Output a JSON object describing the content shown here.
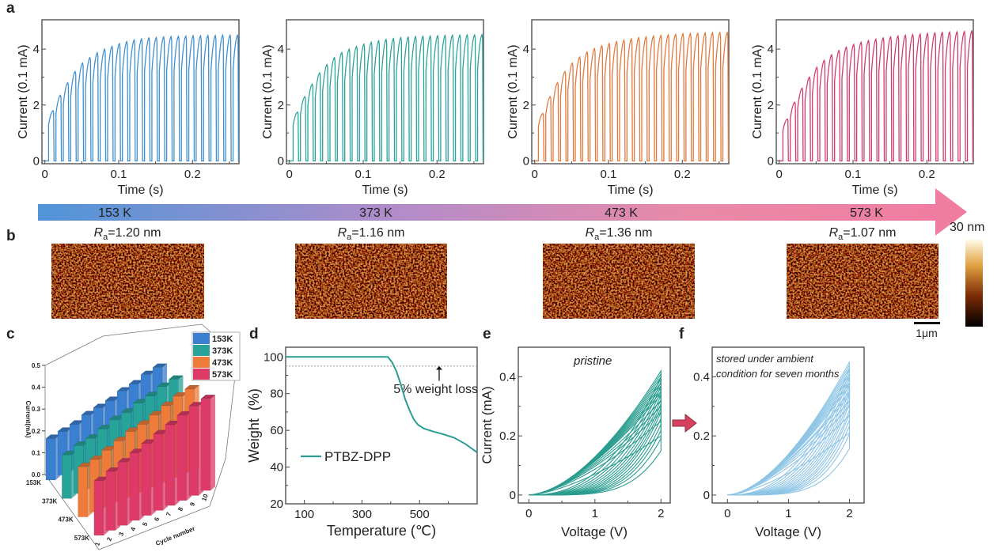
{
  "panel_labels": {
    "a": "a",
    "b": "b",
    "c": "c",
    "d": "d",
    "e": "e",
    "f": "f"
  },
  "temperature_arrow": {
    "labels": [
      "153 K",
      "373 K",
      "473 K",
      "573 K"
    ],
    "gradient_colors": [
      "#4f95d8",
      "#b58cc8",
      "#e98aa8",
      "#f07ba0"
    ]
  },
  "afm": {
    "images": [
      {
        "ra_symbol": "R",
        "ra_sub": "a",
        "ra_value": "=1.20 nm"
      },
      {
        "ra_symbol": "R",
        "ra_sub": "a",
        "ra_value": "=1.16 nm"
      },
      {
        "ra_symbol": "R",
        "ra_sub": "a",
        "ra_value": "=1.36 nm"
      },
      {
        "ra_symbol": "R",
        "ra_sub": "a",
        "ra_value": "=1.07 nm"
      }
    ],
    "colorbar_max": "30 nm",
    "scale_bar": "1μm"
  },
  "chart_data": [
    {
      "panel": "a",
      "type": "line",
      "temperature": "153 K",
      "color": "#3f8fd0",
      "xlabel": "Time (s)",
      "ylabel": "Current (0.1 mA)",
      "xlim": [
        -0.004,
        0.263
      ],
      "ylim": [
        -0.1,
        5.05
      ],
      "xticks": [
        "0",
        "0.1",
        "0.2"
      ],
      "yticks": [
        "0",
        "2",
        "4"
      ],
      "pulse_period_s": 0.01,
      "pulse_peaks": [
        1.8,
        2.35,
        2.8,
        3.2,
        3.5,
        3.7,
        3.87,
        4.0,
        4.1,
        4.2,
        4.27,
        4.33,
        4.37,
        4.4,
        4.42,
        4.44,
        4.45,
        4.46,
        4.47,
        4.48,
        4.48,
        4.49,
        4.49,
        4.5,
        4.5,
        4.5
      ]
    },
    {
      "panel": "a",
      "type": "line",
      "temperature": "373 K",
      "color": "#2aa39a",
      "xlabel": "Time (s)",
      "ylabel": "Current (0.1 mA)",
      "xlim": [
        -0.004,
        0.263
      ],
      "ylim": [
        -0.1,
        5.05
      ],
      "xticks": [
        "0",
        "0.1",
        "0.2"
      ],
      "yticks": [
        "0",
        "2",
        "4"
      ],
      "pulse_period_s": 0.01,
      "pulse_peaks": [
        1.75,
        2.3,
        2.75,
        3.15,
        3.45,
        3.7,
        3.88,
        4.0,
        4.1,
        4.18,
        4.25,
        4.3,
        4.35,
        4.38,
        4.41,
        4.43,
        4.45,
        4.46,
        4.47,
        4.48,
        4.49,
        4.5,
        4.5,
        4.51,
        4.51,
        4.52
      ]
    },
    {
      "panel": "a",
      "type": "line",
      "temperature": "473 K",
      "color": "#e2793e",
      "xlabel": "Time (s)",
      "ylabel": "Current (0.1 mA)",
      "xlim": [
        -0.004,
        0.263
      ],
      "ylim": [
        -0.1,
        5.05
      ],
      "xticks": [
        "0",
        "0.1",
        "0.2"
      ],
      "yticks": [
        "0",
        "2",
        "4"
      ],
      "pulse_period_s": 0.01,
      "pulse_peaks": [
        1.7,
        2.3,
        2.8,
        3.2,
        3.5,
        3.72,
        3.9,
        4.02,
        4.12,
        4.2,
        4.27,
        4.32,
        4.37,
        4.41,
        4.44,
        4.47,
        4.49,
        4.51,
        4.53,
        4.55,
        4.56,
        4.57,
        4.58,
        4.59,
        4.6,
        4.6
      ]
    },
    {
      "panel": "a",
      "type": "line",
      "temperature": "573 K",
      "color": "#d23c6a",
      "xlabel": "Time (s)",
      "ylabel": "Current (0.1 mA)",
      "xlim": [
        -0.004,
        0.263
      ],
      "ylim": [
        -0.1,
        5.05
      ],
      "xticks": [
        "0",
        "0.1",
        "0.2"
      ],
      "yticks": [
        "0",
        "2",
        "4"
      ],
      "pulse_period_s": 0.01,
      "pulse_peaks": [
        1.5,
        2.1,
        2.6,
        3.0,
        3.35,
        3.6,
        3.8,
        3.95,
        4.07,
        4.17,
        4.25,
        4.31,
        4.36,
        4.4,
        4.44,
        4.47,
        4.5,
        4.52,
        4.54,
        4.56,
        4.58,
        4.6,
        4.61,
        4.62,
        4.63,
        4.65
      ]
    },
    {
      "panel": "c",
      "type": "bar3d",
      "ylabel": "Current(mA)",
      "xlabel": "Cycle number",
      "zlim": [
        0,
        0.5
      ],
      "yticks": [
        "0.0",
        "0.1",
        "0.2",
        "0.3",
        "0.4",
        "0.5"
      ],
      "categories": [
        "1",
        "2",
        "3",
        "4",
        "5",
        "6",
        "7",
        "8",
        "9",
        "10"
      ],
      "series": [
        {
          "name": "153K",
          "color": "#3a7fd0",
          "values": [
            0.19,
            0.2,
            0.21,
            0.23,
            0.24,
            0.25,
            0.27,
            0.28,
            0.3,
            0.31
          ]
        },
        {
          "name": "373K",
          "color": "#27a39a",
          "values": [
            0.2,
            0.22,
            0.23,
            0.25,
            0.27,
            0.28,
            0.3,
            0.31,
            0.33,
            0.34
          ]
        },
        {
          "name": "473K",
          "color": "#ee7b3a",
          "values": [
            0.23,
            0.24,
            0.26,
            0.28,
            0.3,
            0.31,
            0.33,
            0.35,
            0.37,
            0.38
          ]
        },
        {
          "name": "573K",
          "color": "#de3a68",
          "values": [
            0.25,
            0.27,
            0.29,
            0.31,
            0.33,
            0.35,
            0.37,
            0.39,
            0.41,
            0.42
          ]
        }
      ],
      "legend": "top-right"
    },
    {
      "panel": "d",
      "type": "line",
      "xlabel": "Temperature (℃)",
      "ylabel": "Weight  (%)",
      "xlim": [
        35,
        700
      ],
      "ylim": [
        20,
        105.3
      ],
      "xticks": [
        100,
        300,
        500
      ],
      "yticks": [
        20,
        40,
        60,
        80,
        100
      ],
      "series": [
        {
          "name": "PTBZ-DPP",
          "color": "#2a9d8f",
          "points": [
            [
              35,
              100
            ],
            [
              390,
              100
            ],
            [
              405,
              97
            ],
            [
              420,
              92
            ],
            [
              435,
              85
            ],
            [
              450,
              77
            ],
            [
              465,
              71
            ],
            [
              480,
              66
            ],
            [
              495,
              63
            ],
            [
              515,
              61
            ],
            [
              545,
              59.5
            ],
            [
              580,
              58
            ],
            [
              620,
              56
            ],
            [
              660,
              52.5
            ],
            [
              700,
              48
            ]
          ]
        }
      ],
      "reference_line": 95,
      "annotation": "5% weight loss",
      "legend": "bottom-left"
    },
    {
      "panel": "e",
      "type": "line",
      "xlabel": "Voltage (V)",
      "ylabel": "Current (mA)",
      "xlim": [
        -0.16,
        2.14
      ],
      "ylim": [
        -0.027,
        0.5
      ],
      "xticks": [
        "0",
        "1",
        "2"
      ],
      "yticks": [
        "0",
        "0.2",
        "0.4"
      ],
      "annotation": "pristine",
      "color": "#2a9d8f",
      "loop_peak_currents": [
        0.2,
        0.25,
        0.28,
        0.3,
        0.32,
        0.34,
        0.35,
        0.36,
        0.37,
        0.38,
        0.39,
        0.4,
        0.41,
        0.42
      ]
    },
    {
      "panel": "f",
      "type": "line",
      "xlabel": "Voltage (V)",
      "ylabel": "",
      "xlim": [
        -0.25,
        2.24
      ],
      "ylim": [
        -0.027,
        0.5
      ],
      "xticks": [
        "0",
        "1",
        "2"
      ],
      "yticks": [
        "0",
        "0.2",
        "0.4"
      ],
      "annotation": [
        "stored under ambient",
        "condition for seven months"
      ],
      "color": "#8ec5e6",
      "loop_peak_currents": [
        0.21,
        0.27,
        0.3,
        0.32,
        0.34,
        0.35,
        0.37,
        0.38,
        0.39,
        0.4,
        0.41,
        0.42,
        0.43,
        0.44,
        0.45
      ]
    }
  ]
}
